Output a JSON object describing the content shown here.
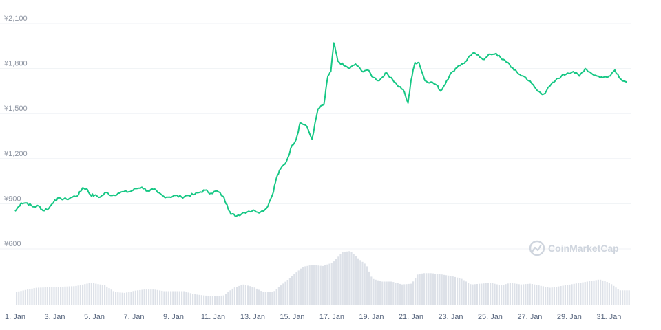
{
  "chart_data": {
    "type": "line",
    "title": "",
    "xlabel": "",
    "ylabel": "",
    "x_range": [
      "1. Jan",
      "32. Jan"
    ],
    "ylim": [
      600,
      2100
    ],
    "y_ticks": [
      {
        "value": 600,
        "label": "¥600"
      },
      {
        "value": 900,
        "label": "¥900"
      },
      {
        "value": 1200,
        "label": "¥1,200"
      },
      {
        "value": 1500,
        "label": "¥1,500"
      },
      {
        "value": 1800,
        "label": "¥1,800"
      },
      {
        "value": 2100,
        "label": "¥2,100"
      }
    ],
    "x_ticks": [
      {
        "day": 1,
        "label": "1. Jan"
      },
      {
        "day": 3,
        "label": "3. Jan"
      },
      {
        "day": 5,
        "label": "5. Jan"
      },
      {
        "day": 7,
        "label": "7. Jan"
      },
      {
        "day": 9,
        "label": "9. Jan"
      },
      {
        "day": 11,
        "label": "11. Jan"
      },
      {
        "day": 13,
        "label": "13. Jan"
      },
      {
        "day": 15,
        "label": "15. Jan"
      },
      {
        "day": 17,
        "label": "17. Jan"
      },
      {
        "day": 19,
        "label": "19. Jan"
      },
      {
        "day": 21,
        "label": "21. Jan"
      },
      {
        "day": 23,
        "label": "23. Jan"
      },
      {
        "day": 25,
        "label": "25. Jan"
      },
      {
        "day": 27,
        "label": "27. Jan"
      },
      {
        "day": 29,
        "label": "29. Jan"
      },
      {
        "day": 31,
        "label": "31. Jan"
      }
    ],
    "grid": true,
    "series": [
      {
        "color": "#16c784",
        "points": [
          [
            1.0,
            850
          ],
          [
            1.3,
            905
          ],
          [
            1.6,
            905
          ],
          [
            1.9,
            880
          ],
          [
            2.2,
            885
          ],
          [
            2.4,
            855
          ],
          [
            2.7,
            870
          ],
          [
            3.0,
            925
          ],
          [
            3.3,
            935
          ],
          [
            3.6,
            930
          ],
          [
            3.9,
            945
          ],
          [
            4.2,
            960
          ],
          [
            4.4,
            1005
          ],
          [
            4.6,
            1000
          ],
          [
            4.8,
            960
          ],
          [
            5.0,
            955
          ],
          [
            5.3,
            945
          ],
          [
            5.6,
            975
          ],
          [
            5.9,
            955
          ],
          [
            6.2,
            970
          ],
          [
            6.5,
            980
          ],
          [
            6.8,
            980
          ],
          [
            7.1,
            1000
          ],
          [
            7.4,
            1010
          ],
          [
            7.7,
            985
          ],
          [
            8.0,
            995
          ],
          [
            8.2,
            975
          ],
          [
            8.5,
            950
          ],
          [
            8.8,
            945
          ],
          [
            9.1,
            955
          ],
          [
            9.4,
            945
          ],
          [
            9.7,
            955
          ],
          [
            10.0,
            960
          ],
          [
            10.3,
            975
          ],
          [
            10.6,
            990
          ],
          [
            10.9,
            970
          ],
          [
            11.2,
            985
          ],
          [
            11.5,
            950
          ],
          [
            11.7,
            895
          ],
          [
            11.9,
            830
          ],
          [
            12.2,
            820
          ],
          [
            12.5,
            840
          ],
          [
            12.8,
            850
          ],
          [
            13.1,
            855
          ],
          [
            13.4,
            845
          ],
          [
            13.7,
            870
          ],
          [
            14.0,
            960
          ],
          [
            14.2,
            1070
          ],
          [
            14.4,
            1130
          ],
          [
            14.7,
            1180
          ],
          [
            15.0,
            1290
          ],
          [
            15.2,
            1330
          ],
          [
            15.4,
            1440
          ],
          [
            15.7,
            1420
          ],
          [
            16.0,
            1330
          ],
          [
            16.3,
            1530
          ],
          [
            16.6,
            1560
          ],
          [
            16.8,
            1750
          ],
          [
            16.95,
            1780
          ],
          [
            17.1,
            1970
          ],
          [
            17.3,
            1850
          ],
          [
            17.6,
            1820
          ],
          [
            17.9,
            1800
          ],
          [
            18.2,
            1830
          ],
          [
            18.5,
            1785
          ],
          [
            18.8,
            1790
          ],
          [
            19.1,
            1740
          ],
          [
            19.4,
            1720
          ],
          [
            19.7,
            1770
          ],
          [
            20.0,
            1740
          ],
          [
            20.3,
            1690
          ],
          [
            20.6,
            1660
          ],
          [
            20.85,
            1570
          ],
          [
            21.0,
            1720
          ],
          [
            21.2,
            1840
          ],
          [
            21.4,
            1840
          ],
          [
            21.7,
            1720
          ],
          [
            22.0,
            1710
          ],
          [
            22.3,
            1690
          ],
          [
            22.5,
            1650
          ],
          [
            22.8,
            1720
          ],
          [
            23.1,
            1780
          ],
          [
            23.4,
            1820
          ],
          [
            23.6,
            1830
          ],
          [
            23.8,
            1850
          ],
          [
            24.1,
            1900
          ],
          [
            24.4,
            1890
          ],
          [
            24.7,
            1860
          ],
          [
            25.0,
            1895
          ],
          [
            25.3,
            1900
          ],
          [
            25.6,
            1860
          ],
          [
            25.9,
            1840
          ],
          [
            26.2,
            1790
          ],
          [
            26.5,
            1760
          ],
          [
            26.8,
            1740
          ],
          [
            27.1,
            1700
          ],
          [
            27.4,
            1650
          ],
          [
            27.7,
            1630
          ],
          [
            28.0,
            1680
          ],
          [
            28.3,
            1720
          ],
          [
            28.6,
            1750
          ],
          [
            28.9,
            1770
          ],
          [
            29.2,
            1780
          ],
          [
            29.5,
            1750
          ],
          [
            29.8,
            1800
          ],
          [
            30.1,
            1770
          ],
          [
            30.4,
            1750
          ],
          [
            30.7,
            1740
          ],
          [
            31.0,
            1750
          ],
          [
            31.3,
            1790
          ],
          [
            31.6,
            1730
          ],
          [
            31.9,
            1710
          ]
        ]
      }
    ],
    "volume": [
      [
        1.0,
        0.3
      ],
      [
        2.0,
        0.4
      ],
      [
        3.0,
        0.42
      ],
      [
        4.0,
        0.44
      ],
      [
        4.8,
        0.52
      ],
      [
        5.5,
        0.46
      ],
      [
        6.0,
        0.3
      ],
      [
        6.5,
        0.28
      ],
      [
        7.0,
        0.33
      ],
      [
        7.5,
        0.36
      ],
      [
        8.0,
        0.36
      ],
      [
        8.5,
        0.32
      ],
      [
        9.0,
        0.32
      ],
      [
        9.5,
        0.32
      ],
      [
        10.0,
        0.25
      ],
      [
        10.5,
        0.22
      ],
      [
        11.0,
        0.2
      ],
      [
        11.5,
        0.22
      ],
      [
        12.0,
        0.4
      ],
      [
        12.5,
        0.48
      ],
      [
        13.0,
        0.42
      ],
      [
        13.5,
        0.3
      ],
      [
        14.0,
        0.3
      ],
      [
        14.5,
        0.5
      ],
      [
        15.0,
        0.7
      ],
      [
        15.5,
        0.9
      ],
      [
        16.0,
        0.95
      ],
      [
        16.5,
        0.92
      ],
      [
        17.0,
        1.0
      ],
      [
        17.5,
        1.25
      ],
      [
        17.9,
        1.28
      ],
      [
        18.3,
        1.1
      ],
      [
        18.7,
        0.95
      ],
      [
        19.0,
        0.62
      ],
      [
        19.5,
        0.55
      ],
      [
        20.0,
        0.55
      ],
      [
        20.5,
        0.48
      ],
      [
        21.0,
        0.5
      ],
      [
        21.3,
        0.72
      ],
      [
        21.6,
        0.75
      ],
      [
        22.0,
        0.75
      ],
      [
        22.5,
        0.72
      ],
      [
        23.0,
        0.68
      ],
      [
        23.5,
        0.62
      ],
      [
        24.0,
        0.48
      ],
      [
        24.5,
        0.5
      ],
      [
        25.0,
        0.52
      ],
      [
        25.5,
        0.46
      ],
      [
        26.0,
        0.52
      ],
      [
        26.5,
        0.48
      ],
      [
        27.0,
        0.5
      ],
      [
        27.5,
        0.45
      ],
      [
        28.0,
        0.4
      ],
      [
        28.5,
        0.44
      ],
      [
        29.0,
        0.48
      ],
      [
        29.5,
        0.52
      ],
      [
        30.0,
        0.56
      ],
      [
        30.5,
        0.6
      ],
      [
        31.0,
        0.52
      ],
      [
        31.5,
        0.34
      ],
      [
        32.0,
        0.34
      ]
    ]
  },
  "watermark": {
    "text": "CoinMarketCap"
  }
}
